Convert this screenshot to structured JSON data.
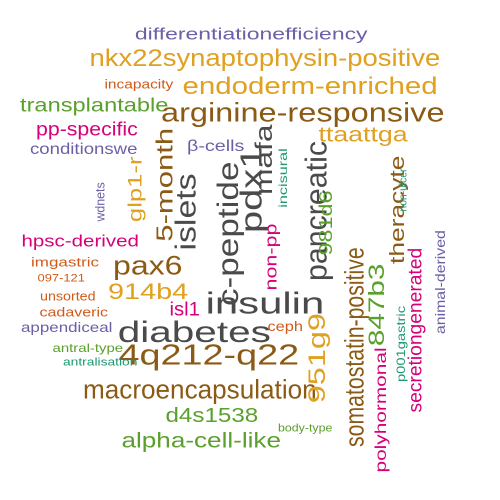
{
  "palette": {
    "gray": "#4a4a4a",
    "brown": "#8b5a14",
    "gold": "#e0a020",
    "green": "#5aa02c",
    "purple": "#6b5fa6",
    "magenta": "#d6007a",
    "orange": "#d05a1a",
    "teal": "#1e9870"
  },
  "words": [
    {
      "text": "differentiationefficiency",
      "color": "purple"
    },
    {
      "text": "nkx22synaptophysin-positive",
      "color": "gold"
    },
    {
      "text": "incapacity",
      "color": "orange"
    },
    {
      "text": "endoderm-enriched",
      "color": "gold"
    },
    {
      "text": "transplantable",
      "color": "green"
    },
    {
      "text": "arginine-responsive",
      "color": "brown"
    },
    {
      "text": "pp-specific",
      "color": "magenta"
    },
    {
      "text": "ttaattga",
      "color": "gold"
    },
    {
      "text": "conditionswe",
      "color": "purple"
    },
    {
      "text": "β-cells",
      "color": "purple"
    },
    {
      "text": "hpsc-derived",
      "color": "magenta"
    },
    {
      "text": "pax6",
      "color": "brown"
    },
    {
      "text": "imgastric",
      "color": "orange"
    },
    {
      "text": "097-121",
      "color": "orange"
    },
    {
      "text": "914b4",
      "color": "gold"
    },
    {
      "text": "unsorted",
      "color": "orange"
    },
    {
      "text": "insulin",
      "color": "gray"
    },
    {
      "text": "cadaveric",
      "color": "orange"
    },
    {
      "text": "appendiceal",
      "color": "purple"
    },
    {
      "text": "diabetes",
      "color": "gray"
    },
    {
      "text": "ceph",
      "color": "orange"
    },
    {
      "text": "antral-type",
      "color": "green"
    },
    {
      "text": "4q212-q22",
      "color": "brown"
    },
    {
      "text": "antralisation",
      "color": "teal"
    },
    {
      "text": "macroencapsulation",
      "color": "brown"
    },
    {
      "text": "d4s1538",
      "color": "green"
    },
    {
      "text": "body-type",
      "color": "green"
    },
    {
      "text": "alpha-cell-like",
      "color": "green"
    },
    {
      "text": "isl1",
      "color": "magenta"
    },
    {
      "text": "wdnets",
      "color": "purple"
    },
    {
      "text": "glp1-r",
      "color": "gold"
    },
    {
      "text": "5-month",
      "color": "brown"
    },
    {
      "text": "islets",
      "color": "gray"
    },
    {
      "text": "c-peptide",
      "color": "gray"
    },
    {
      "text": "pdx1",
      "color": "gray"
    },
    {
      "text": "mafa",
      "color": "gray"
    },
    {
      "text": "non-pp",
      "color": "magenta"
    },
    {
      "text": "incisural",
      "color": "teal"
    },
    {
      "text": "pancreatic",
      "color": "gray"
    },
    {
      "text": "951g9",
      "color": "gold"
    },
    {
      "text": "981d6",
      "color": "green"
    },
    {
      "text": "somatostatin-positive",
      "color": "brown"
    },
    {
      "text": "847b3",
      "color": "green"
    },
    {
      "text": "theracyte",
      "color": "brown"
    },
    {
      "text": "non-ulcer",
      "color": "teal"
    },
    {
      "text": "p001gastric",
      "color": "teal"
    },
    {
      "text": "polyhormonal",
      "color": "magenta"
    },
    {
      "text": "secretiongenerated",
      "color": "magenta"
    },
    {
      "text": "animal-derived",
      "color": "purple"
    }
  ]
}
